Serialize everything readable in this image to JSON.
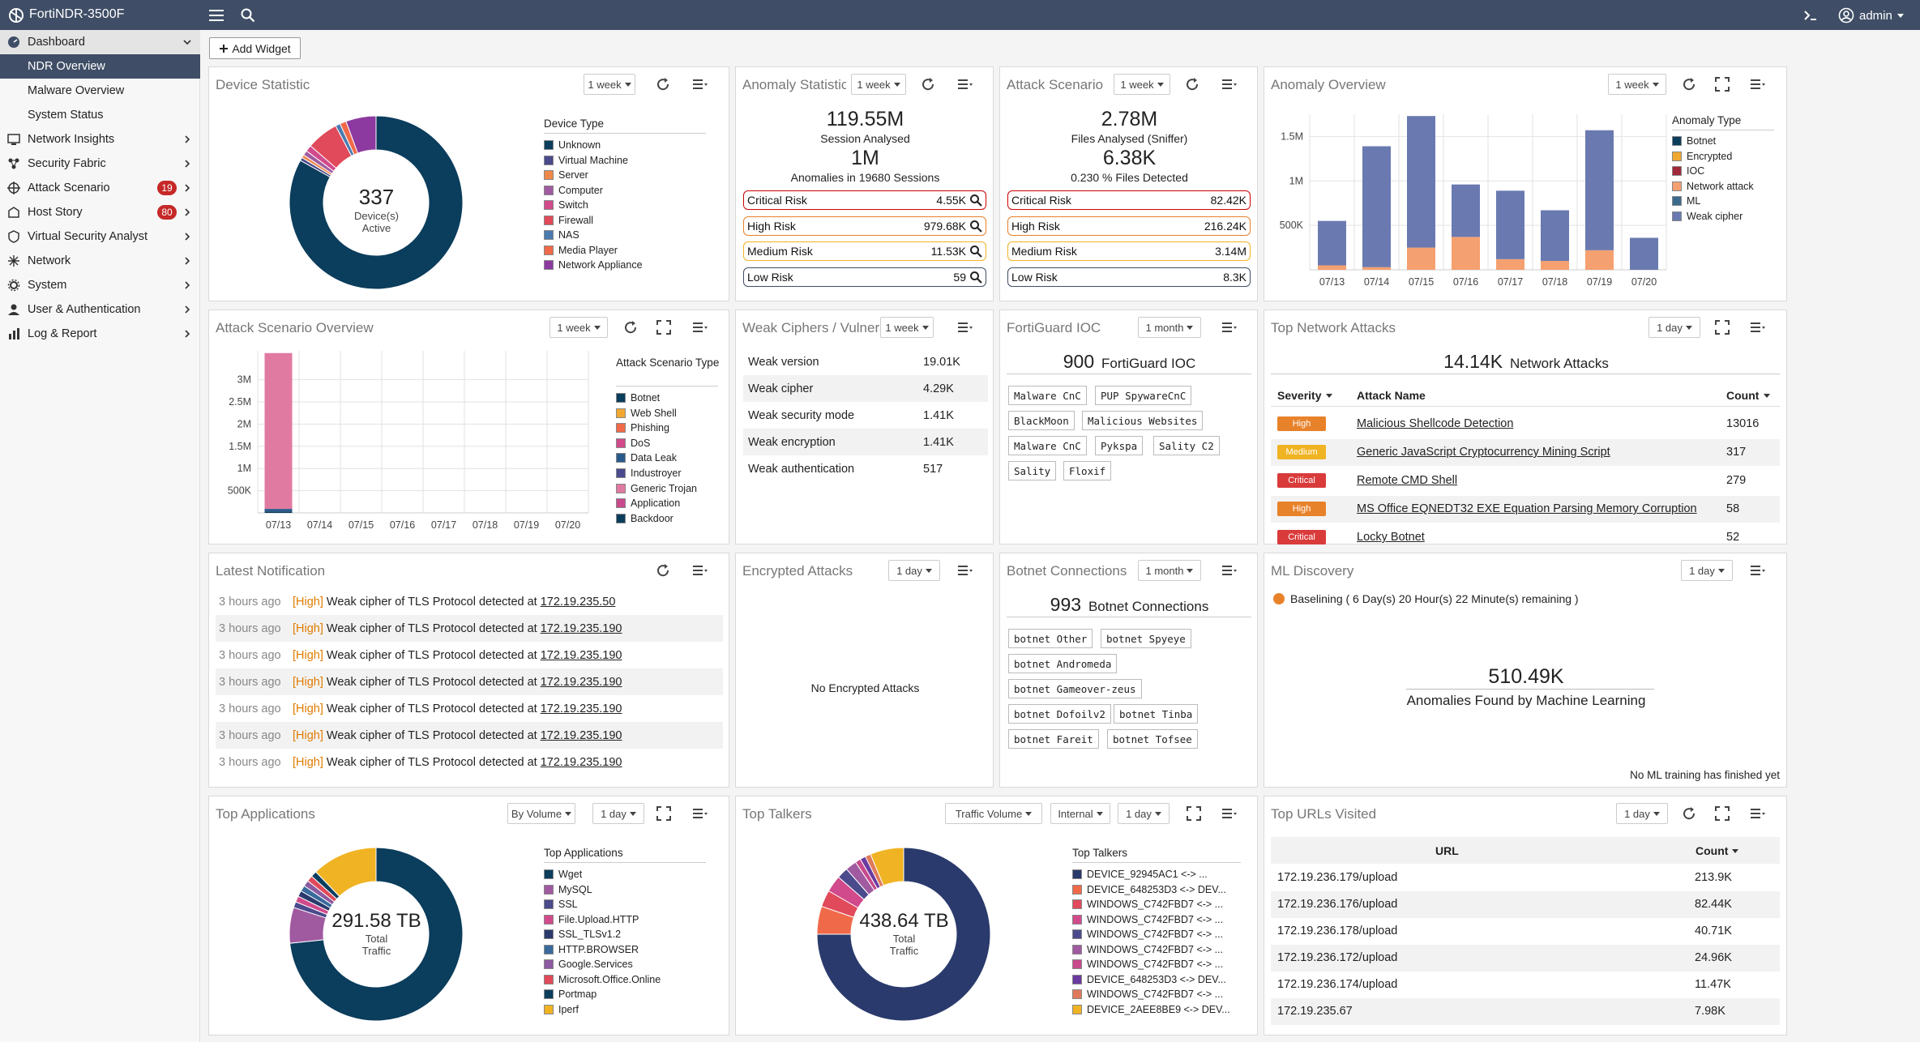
{
  "header": {
    "brand": "FortiNDR-3500F",
    "user": "admin"
  },
  "sidebar": {
    "items": [
      {
        "label": "Dashboard",
        "icon": "dashboard-icon",
        "expanded": true
      },
      {
        "label": "NDR Overview",
        "sub": true,
        "selected": true
      },
      {
        "label": "Malware Overview",
        "sub": true
      },
      {
        "label": "System Status",
        "sub": true
      },
      {
        "label": "Network Insights",
        "icon": "network-insights-icon"
      },
      {
        "label": "Security Fabric",
        "icon": "security-fabric-icon"
      },
      {
        "label": "Attack Scenario",
        "icon": "attack-scenario-icon",
        "badge": "19"
      },
      {
        "label": "Host Story",
        "icon": "host-story-icon",
        "badge": "80"
      },
      {
        "label": "Virtual Security Analyst",
        "icon": "virtual-analyst-icon"
      },
      {
        "label": "Network",
        "icon": "network-icon"
      },
      {
        "label": "System",
        "icon": "system-icon"
      },
      {
        "label": "User & Authentication",
        "icon": "user-icon"
      },
      {
        "label": "Log & Report",
        "icon": "log-report-icon"
      }
    ]
  },
  "toolbar": {
    "add_widget": "Add Widget"
  },
  "widgets": {
    "device_statistic": {
      "title": "Device Statistic",
      "range": "1 week",
      "center_value": "337",
      "center_line1": "Device(s)",
      "center_line2": "Active",
      "legend_title": "Device Type"
    },
    "anomaly_statistics": {
      "title": "Anomaly Statistics",
      "range": "1 week",
      "sessions_value": "119.55M",
      "sessions_label": "Session Analysed",
      "anomalies_value": "1M",
      "anomalies_label": "Anomalies in 19680 Sessions",
      "rows": [
        {
          "label": "Critical Risk",
          "value": "4.55K"
        },
        {
          "label": "High Risk",
          "value": "979.68K"
        },
        {
          "label": "Medium Risk",
          "value": "11.53K"
        },
        {
          "label": "Low Risk",
          "value": "59"
        }
      ]
    },
    "attack_scenario": {
      "title": "Attack Scenario",
      "range": "1 week",
      "files_value": "2.78M",
      "files_label": "Files Analysed (Sniffer)",
      "detected_value": "6.38K",
      "detected_label": "0.230 % Files Detected",
      "rows": [
        {
          "label": "Critical Risk",
          "value": "82.42K"
        },
        {
          "label": "High Risk",
          "value": "216.24K"
        },
        {
          "label": "Medium Risk",
          "value": "3.14M"
        },
        {
          "label": "Low Risk",
          "value": "8.3K"
        }
      ]
    },
    "anomaly_overview": {
      "title": "Anomaly Overview",
      "range": "1 week",
      "legend_title": "Anomaly Type"
    },
    "attack_scenario_overview": {
      "title": "Attack Scenario Overview",
      "range": "1 week",
      "legend_title": "Attack Scenario Type"
    },
    "weak_ciphers": {
      "title": "Weak Ciphers / Vulnerabilities",
      "range": "1 week",
      "rows": [
        {
          "label": "Weak version",
          "value": "19.01K"
        },
        {
          "label": "Weak cipher",
          "value": "4.29K"
        },
        {
          "label": "Weak security mode",
          "value": "1.41K"
        },
        {
          "label": "Weak encryption",
          "value": "1.41K"
        },
        {
          "label": "Weak authentication",
          "value": "517"
        }
      ]
    },
    "fortiguard_ioc": {
      "title": "FortiGuard IOC",
      "range": "1 month",
      "count": "900",
      "count_label": "FortiGuard IOC",
      "tags": [
        "Malware CnC",
        "PUP SpywareCnC",
        "BlackMoon",
        "Malicious Websites",
        "Malware CnC",
        "Pykspa",
        "Sality C2",
        "Sality",
        "Floxif"
      ]
    },
    "top_network_attacks": {
      "title": "Top Network Attacks",
      "range": "1 day",
      "count": "14.14K",
      "count_label": "Network Attacks",
      "col_severity": "Severity",
      "col_name": "Attack Name",
      "col_count": "Count",
      "rows": [
        {
          "severity": "High",
          "color": "#e8822a",
          "name": "Malicious Shellcode Detection",
          "count": "13016"
        },
        {
          "severity": "Medium",
          "color": "#f0b323",
          "name": "Generic JavaScript Cryptocurrency Mining Script",
          "count": "317"
        },
        {
          "severity": "Critical",
          "color": "#d93b3b",
          "name": "Remote CMD Shell",
          "count": "279"
        },
        {
          "severity": "High",
          "color": "#e8822a",
          "name": "MS Office EQNEDT32 EXE Equation Parsing Memory Corruption",
          "count": "58"
        },
        {
          "severity": "Critical",
          "color": "#d93b3b",
          "name": "Locky Botnet",
          "count": "52"
        }
      ]
    },
    "latest_notification": {
      "title": "Latest Notification",
      "rows": [
        {
          "time": "3 hours ago",
          "level": "[High]",
          "msg": "Weak cipher of TLS Protocol detected at",
          "ip": "172.19.235.50"
        },
        {
          "time": "3 hours ago",
          "level": "[High]",
          "msg": "Weak cipher of TLS Protocol detected at",
          "ip": "172.19.235.190"
        },
        {
          "time": "3 hours ago",
          "level": "[High]",
          "msg": "Weak cipher of TLS Protocol detected at",
          "ip": "172.19.235.190"
        },
        {
          "time": "3 hours ago",
          "level": "[High]",
          "msg": "Weak cipher of TLS Protocol detected at",
          "ip": "172.19.235.190"
        },
        {
          "time": "3 hours ago",
          "level": "[High]",
          "msg": "Weak cipher of TLS Protocol detected at",
          "ip": "172.19.235.190"
        },
        {
          "time": "3 hours ago",
          "level": "[High]",
          "msg": "Weak cipher of TLS Protocol detected at",
          "ip": "172.19.235.190"
        },
        {
          "time": "3 hours ago",
          "level": "[High]",
          "msg": "Weak cipher of TLS Protocol detected at",
          "ip": "172.19.235.190"
        }
      ]
    },
    "encrypted_attacks": {
      "title": "Encrypted Attacks",
      "range": "1 day",
      "empty": "No Encrypted Attacks"
    },
    "botnet_connections": {
      "title": "Botnet Connections",
      "range": "1 month",
      "count": "993",
      "count_label": "Botnet Connections",
      "tags": [
        "botnet Other",
        "botnet Spyeye",
        "botnet Andromeda",
        "botnet Gameover-zeus",
        "botnet Dofoilv2",
        "botnet Tinba",
        "botnet Fareit",
        "botnet Tofsee"
      ]
    },
    "ml_discovery": {
      "title": "ML Discovery",
      "range": "1 day",
      "status": "Baselining ( 6 Day(s) 20 Hour(s) 22 Minute(s) remaining )",
      "value": "510.49K",
      "value_label": "Anomalies Found by Machine Learning",
      "footer": "No ML training has finished yet"
    },
    "top_applications": {
      "title": "Top Applications",
      "sort": "By Volume",
      "range": "1 day",
      "center_value": "291.58 TB",
      "center_line1": "Total",
      "center_line2": "Traffic",
      "legend_title": "Top Applications"
    },
    "top_talkers": {
      "title": "Top Talkers",
      "sort": "Traffic Volume",
      "scope": "Internal",
      "range": "1 day",
      "center_value": "438.64 TB",
      "center_line1": "Total",
      "center_line2": "Traffic",
      "legend_title": "Top Talkers"
    },
    "top_urls": {
      "title": "Top URLs Visited",
      "range": "1 day",
      "col_url": "URL",
      "col_count": "Count",
      "rows": [
        {
          "url": "172.19.236.179/upload",
          "count": "213.9K"
        },
        {
          "url": "172.19.236.176/upload",
          "count": "82.44K"
        },
        {
          "url": "172.19.236.178/upload",
          "count": "40.71K"
        },
        {
          "url": "172.19.236.172/upload",
          "count": "24.96K"
        },
        {
          "url": "172.19.236.174/upload",
          "count": "11.47K"
        },
        {
          "url": "172.19.235.67",
          "count": "7.98K"
        }
      ]
    }
  },
  "chart_data": [
    {
      "type": "pie",
      "widget": "device_statistic",
      "categories": [
        "Unknown",
        "Virtual Machine",
        "Server",
        "Computer",
        "Switch",
        "Firewall",
        "NAS",
        "Media Player",
        "Network Appliance"
      ],
      "colors": [
        "#0b3d5c",
        "#4a4a8c",
        "#f0884a",
        "#a05aa0",
        "#d14a8c",
        "#e04a5a",
        "#4a7ab0",
        "#f06a4a",
        "#8c3aa0"
      ],
      "values": [
        280,
        2,
        2,
        3,
        4,
        20,
        3,
        4,
        19
      ]
    },
    {
      "type": "bar",
      "widget": "anomaly_overview",
      "stacked": true,
      "categories": [
        "07/13",
        "07/14",
        "07/15",
        "07/16",
        "07/17",
        "07/18",
        "07/19",
        "07/20"
      ],
      "series": [
        {
          "name": "Botnet",
          "color": "#0b3d5c",
          "values": [
            0,
            0,
            0,
            0,
            0,
            0,
            0,
            0
          ]
        },
        {
          "name": "Encrypted",
          "color": "#f0a830",
          "values": [
            0,
            0,
            0,
            0,
            0,
            0,
            0,
            0
          ]
        },
        {
          "name": "IOC",
          "color": "#a02a3a",
          "values": [
            0,
            0,
            0,
            0,
            0,
            0,
            0,
            0
          ]
        },
        {
          "name": "Network attack",
          "color": "#f5a070",
          "values": [
            50000,
            30000,
            250000,
            370000,
            120000,
            100000,
            220000,
            0
          ]
        },
        {
          "name": "ML",
          "color": "#3a6a8c",
          "values": [
            0,
            0,
            0,
            0,
            0,
            0,
            0,
            0
          ]
        },
        {
          "name": "Weak cipher",
          "color": "#6a7ab0",
          "values": [
            500000,
            1360000,
            1480000,
            590000,
            770000,
            570000,
            1350000,
            360000
          ]
        }
      ],
      "yticks": [
        "500K",
        "1M",
        "1.5M"
      ],
      "ylim": [
        0,
        1750000
      ]
    },
    {
      "type": "bar",
      "widget": "attack_scenario_overview",
      "stacked": true,
      "categories": [
        "07/13",
        "07/14",
        "07/15",
        "07/16",
        "07/17",
        "07/18",
        "07/19",
        "07/20"
      ],
      "series": [
        {
          "name": "Botnet",
          "color": "#0b3d5c",
          "values": [
            30000,
            0,
            0,
            0,
            0,
            0,
            0,
            0
          ]
        },
        {
          "name": "Web Shell",
          "color": "#f0a830",
          "values": [
            0,
            0,
            0,
            0,
            0,
            0,
            0,
            0
          ]
        },
        {
          "name": "Phishing",
          "color": "#f06a4a",
          "values": [
            0,
            0,
            0,
            0,
            0,
            0,
            0,
            0
          ]
        },
        {
          "name": "DoS",
          "color": "#d14a8c",
          "values": [
            0,
            0,
            0,
            0,
            0,
            0,
            0,
            0
          ]
        },
        {
          "name": "Data Leak",
          "color": "#2a5a8c",
          "values": [
            60000,
            0,
            0,
            0,
            0,
            0,
            0,
            0
          ]
        },
        {
          "name": "Industroyer",
          "color": "#4a4a8c",
          "values": [
            0,
            0,
            0,
            0,
            0,
            0,
            0,
            0
          ]
        },
        {
          "name": "Generic Trojan",
          "color": "#e07aa0",
          "values": [
            3510000,
            0,
            0,
            0,
            0,
            0,
            0,
            0
          ]
        },
        {
          "name": "Application",
          "color": "#c84a8c",
          "values": [
            0,
            0,
            0,
            0,
            0,
            0,
            0,
            0
          ]
        },
        {
          "name": "Backdoor",
          "color": "#0b3d5c",
          "values": [
            0,
            0,
            0,
            0,
            0,
            0,
            0,
            0
          ]
        }
      ],
      "yticks": [
        "500K",
        "1M",
        "1.5M",
        "2M",
        "2.5M",
        "3M"
      ],
      "ylim": [
        0,
        3650000
      ]
    },
    {
      "type": "pie",
      "widget": "top_applications",
      "categories": [
        "Wget",
        "MySQL",
        "SSL",
        "File.Upload.HTTP",
        "SSL_TLSv1.2",
        "HTTP.BROWSER",
        "Google.Services",
        "Microsoft.Office.Online",
        "Portmap",
        "Iperf"
      ],
      "colors": [
        "#0b3d5c",
        "#a05aa0",
        "#4a4a8c",
        "#d14a8c",
        "#2a3a6c",
        "#3a6a9c",
        "#8c5aa0",
        "#e04a5a",
        "#0b3d5c",
        "#f0b323"
      ],
      "values": [
        66,
        6,
        1,
        1,
        1,
        1,
        1,
        1,
        1,
        11
      ]
    },
    {
      "type": "pie",
      "widget": "top_talkers",
      "categories": [
        "DEVICE_92945AC1 <-> ...",
        "DEVICE_648253D3 <-> DEV...",
        "WINDOWS_C742FBD7 <-> ...",
        "WINDOWS_C742FBD7 <-> ...",
        "WINDOWS_C742FBD7 <-> ...",
        "WINDOWS_C742FBD7 <-> ...",
        "WINDOWS_C742FBD7 <-> ...",
        "DEVICE_648253D3 <-> DEV...",
        "WINDOWS_C742FBD7 <-> ...",
        "DEVICE_2AEE8BE9 <-> DEV..."
      ],
      "colors": [
        "#2a3a6c",
        "#f06a4a",
        "#e04a5a",
        "#d14a8c",
        "#4a4a8c",
        "#a05aa0",
        "#c84a8c",
        "#6a3aa0",
        "#e07a5a",
        "#f0b323"
      ],
      "values": [
        72,
        5,
        3,
        3,
        2,
        2,
        1,
        1,
        1,
        6
      ]
    }
  ]
}
